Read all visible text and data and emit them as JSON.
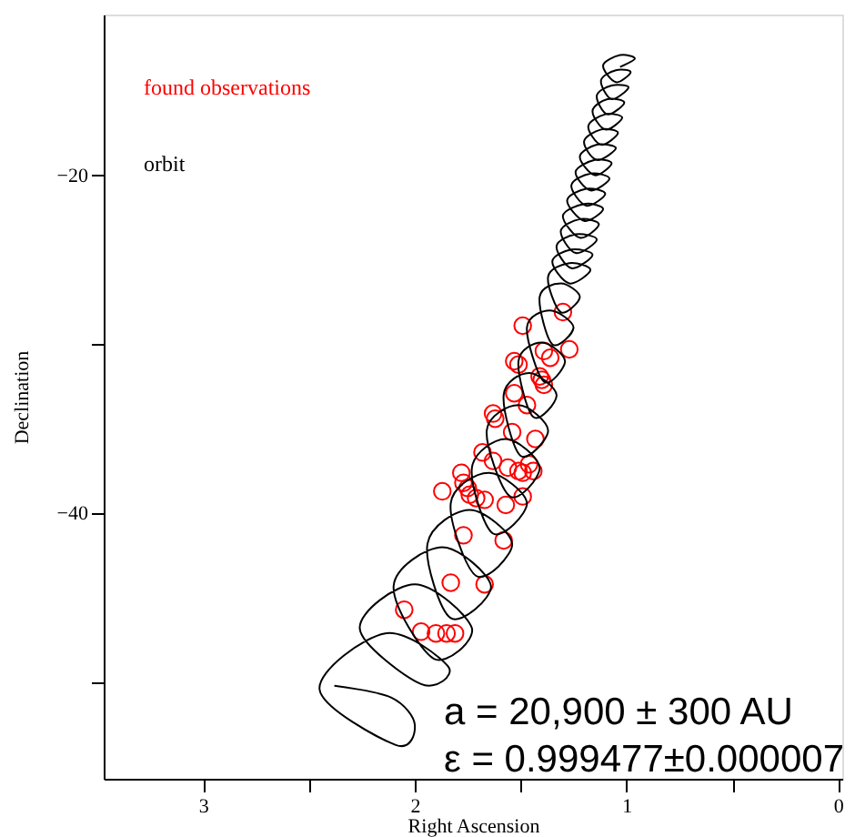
{
  "chart_data": {
    "type": "line",
    "xlabel": "Right Ascension",
    "ylabel": "Declination",
    "xlim": [
      3.47,
      -0.02
    ],
    "ylim": [
      -55.7,
      -10.5
    ],
    "xticks": [
      3,
      {
        "value": 2.5,
        "label": null
      },
      2,
      {
        "value": 1.5,
        "label": null
      },
      1,
      {
        "value": 0.5,
        "label": null
      },
      0
    ],
    "yticks": [
      {
        "value": -50,
        "label": null
      },
      -40,
      {
        "value": -30,
        "label": null
      },
      -20
    ],
    "grid": false,
    "legend": "top left",
    "annotations": [
      "a = 20,900 ± 300 AU",
      "ε = 0.999477±0.000007"
    ],
    "series": [
      {
        "name": "found observations",
        "type": "scatter",
        "color": "#ff0000",
        "marker": "circle",
        "x": [
          1.3,
          1.27,
          1.39,
          1.36,
          1.49,
          1.53,
          1.51,
          1.4,
          1.39,
          1.41,
          1.53,
          1.47,
          1.63,
          1.62,
          1.54,
          1.43,
          1.68,
          1.63,
          1.56,
          1.51,
          1.46,
          1.44,
          1.49,
          1.78,
          1.77,
          1.75,
          1.74,
          1.71,
          1.67,
          1.87,
          1.49,
          1.57,
          1.77,
          1.58,
          1.83,
          1.67,
          2.05,
          1.97,
          1.9,
          1.85,
          1.81
        ],
        "values": [
          -28.1,
          -30.3,
          -30.4,
          -30.8,
          -28.9,
          -31.0,
          -31.2,
          -32.1,
          -32.4,
          -31.9,
          -32.9,
          -33.6,
          -34.1,
          -34.4,
          -35.2,
          -35.6,
          -36.4,
          -36.9,
          -37.3,
          -37.5,
          -37.1,
          -37.5,
          -37.6,
          -37.6,
          -38.2,
          -38.5,
          -38.9,
          -39.1,
          -39.2,
          -38.7,
          -39.0,
          -39.5,
          -41.3,
          -41.6,
          -44.1,
          -44.2,
          -45.7,
          -47.0,
          -47.1,
          -47.1,
          -47.1
        ]
      },
      {
        "name": "orbit",
        "color": "#000000",
        "line_style": "solid",
        "x": [
          2.38,
          2.11,
          2.0,
          2.09,
          2.45,
          2.14,
          1.84,
          1.97,
          2.26,
          2.0,
          1.73,
          1.91,
          2.1,
          1.87,
          1.64,
          1.83,
          1.94,
          1.74,
          1.54,
          1.71,
          1.83,
          1.65,
          1.47,
          1.63,
          1.73,
          1.57,
          1.41,
          1.55,
          1.66,
          1.51,
          1.37,
          1.5,
          1.58,
          1.46,
          1.33,
          1.44,
          1.51,
          1.4,
          1.29,
          1.39,
          1.47,
          1.36,
          1.25,
          1.35,
          1.41,
          1.31,
          1.22,
          1.31,
          1.37,
          1.27,
          1.17,
          1.27,
          1.35,
          1.26,
          1.16,
          1.26,
          1.33,
          1.24,
          1.14,
          1.24,
          1.31,
          1.22,
          1.13,
          1.22,
          1.3,
          1.2,
          1.11,
          1.2,
          1.28,
          1.19,
          1.1,
          1.19,
          1.26,
          1.17,
          1.08,
          1.17,
          1.24,
          1.15,
          1.07,
          1.15,
          1.22,
          1.14,
          1.05,
          1.14,
          1.2,
          1.12,
          1.04,
          1.12,
          1.18,
          1.1,
          1.02,
          1.1,
          1.16,
          1.09,
          1.01,
          1.09,
          1.14,
          1.07,
          0.99,
          1.07,
          1.12,
          1.05,
          0.98,
          1.05,
          1.11,
          1.03,
          0.96,
          1.03
        ],
        "values": [
          -50.2,
          -50.9,
          -52.5,
          -53.7,
          -50.4,
          -47.1,
          -49.1,
          -50.1,
          -46.8,
          -44.2,
          -46.8,
          -48.6,
          -44.3,
          -42.0,
          -44.3,
          -46.2,
          -41.8,
          -39.8,
          -41.8,
          -43.7,
          -39.4,
          -37.6,
          -39.4,
          -41.2,
          -37.3,
          -35.6,
          -37.3,
          -39.0,
          -35.1,
          -33.6,
          -35.1,
          -36.6,
          -33.0,
          -31.7,
          -33.0,
          -34.3,
          -31.0,
          -29.9,
          -31.0,
          -32.2,
          -29.0,
          -28.0,
          -29.0,
          -30.0,
          -27.2,
          -26.4,
          -27.2,
          -28.1,
          -26.0,
          -25.2,
          -25.6,
          -26.4,
          -25.1,
          -24.4,
          -24.7,
          -25.5,
          -24.2,
          -23.5,
          -23.8,
          -24.6,
          -23.3,
          -22.6,
          -22.9,
          -23.7,
          -22.4,
          -21.7,
          -22.0,
          -22.7,
          -21.5,
          -20.8,
          -21.1,
          -21.8,
          -20.6,
          -19.9,
          -20.2,
          -20.9,
          -19.8,
          -19.1,
          -19.3,
          -20.0,
          -18.9,
          -18.2,
          -18.4,
          -19.1,
          -18.0,
          -17.3,
          -17.5,
          -18.2,
          -17.1,
          -16.4,
          -16.6,
          -17.3,
          -16.2,
          -15.5,
          -15.7,
          -16.4,
          -15.3,
          -14.7,
          -14.8,
          -15.5,
          -14.4,
          -13.8,
          -13.9,
          -14.5,
          -13.5,
          -12.9,
          -13.1,
          -13.6
        ]
      }
    ]
  }
}
